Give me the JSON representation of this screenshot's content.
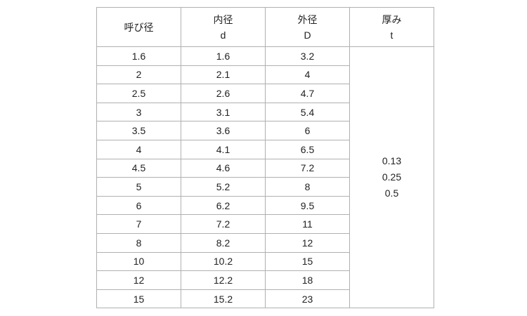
{
  "headers": [
    {
      "line1": "呼び径",
      "line2": ""
    },
    {
      "line1": "内径",
      "line2": "d"
    },
    {
      "line1": "外径",
      "line2": "D"
    },
    {
      "line1": "厚み",
      "line2": "t"
    }
  ],
  "rows": [
    [
      "1.6",
      "1.6",
      "3.2"
    ],
    [
      "2",
      "2.1",
      "4"
    ],
    [
      "2.5",
      "2.6",
      "4.7"
    ],
    [
      "3",
      "3.1",
      "5.4"
    ],
    [
      "3.5",
      "3.6",
      "6"
    ],
    [
      "4",
      "4.1",
      "6.5"
    ],
    [
      "4.5",
      "4.6",
      "7.2"
    ],
    [
      "5",
      "5.2",
      "8"
    ],
    [
      "6",
      "6.2",
      "9.5"
    ],
    [
      "7",
      "7.2",
      "11"
    ],
    [
      "8",
      "8.2",
      "12"
    ],
    [
      "10",
      "10.2",
      "15"
    ],
    [
      "12",
      "12.2",
      "18"
    ],
    [
      "15",
      "15.2",
      "23"
    ]
  ],
  "thickness": [
    "0.13",
    "0.25",
    "0.5"
  ]
}
